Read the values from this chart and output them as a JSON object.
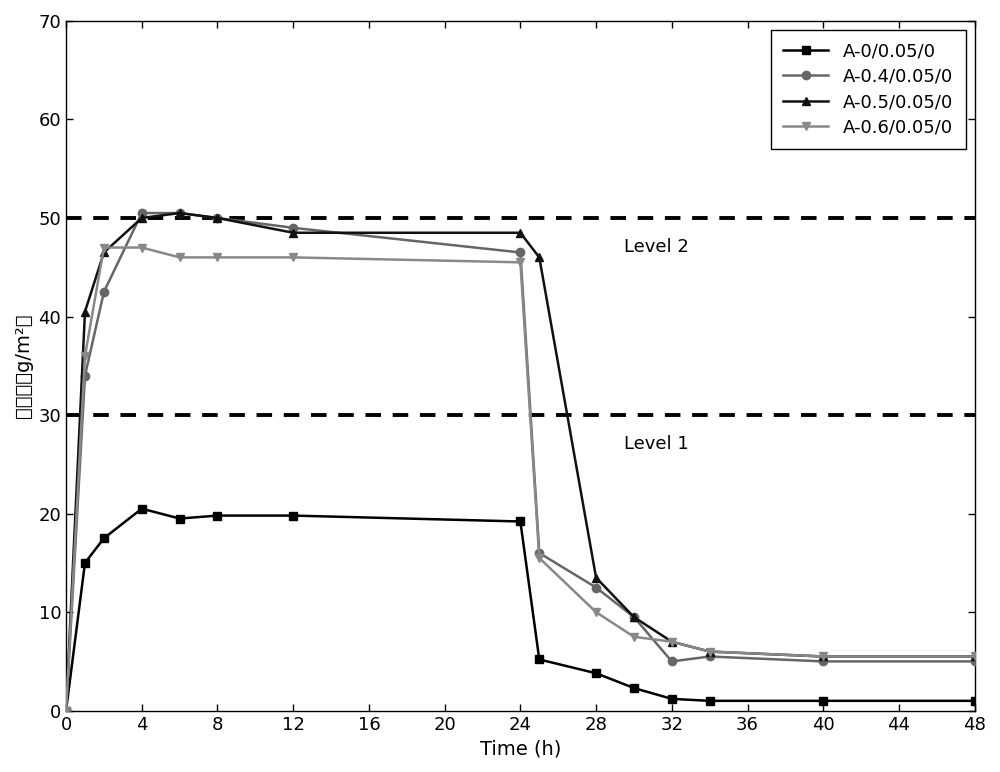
{
  "series": [
    {
      "label": "A-0/0.05/0",
      "color": "#000000",
      "linewidth": 1.8,
      "marker": "s",
      "markersize": 6,
      "x": [
        0,
        1,
        2,
        4,
        6,
        8,
        12,
        24,
        25,
        28,
        30,
        32,
        34,
        40,
        48
      ],
      "y": [
        0,
        15.0,
        17.5,
        20.5,
        19.5,
        19.8,
        19.8,
        19.2,
        5.2,
        3.8,
        2.3,
        1.2,
        1.0,
        1.0,
        1.0
      ]
    },
    {
      "label": "A-0.4/0.05/0",
      "color": "#666666",
      "linewidth": 1.8,
      "marker": "o",
      "markersize": 6,
      "x": [
        0,
        1,
        2,
        4,
        6,
        8,
        12,
        24,
        25,
        28,
        30,
        32,
        34,
        40,
        48
      ],
      "y": [
        0,
        34.0,
        42.5,
        50.5,
        50.5,
        50.0,
        49.0,
        46.5,
        16.0,
        12.5,
        9.5,
        5.0,
        5.5,
        5.0,
        5.0
      ]
    },
    {
      "label": "A-0.5/0.05/0",
      "color": "#111111",
      "linewidth": 1.8,
      "marker": "^",
      "markersize": 6,
      "x": [
        0,
        1,
        2,
        4,
        6,
        8,
        12,
        24,
        25,
        28,
        30,
        32,
        34,
        40,
        48
      ],
      "y": [
        0,
        40.5,
        46.5,
        50.0,
        50.5,
        50.0,
        48.5,
        48.5,
        46.0,
        13.5,
        9.5,
        7.0,
        6.0,
        5.5,
        5.5
      ]
    },
    {
      "label": "A-0.6/0.05/0",
      "color": "#888888",
      "linewidth": 1.8,
      "marker": "v",
      "markersize": 6,
      "x": [
        0,
        1,
        2,
        4,
        6,
        8,
        12,
        24,
        25,
        28,
        30,
        32,
        34,
        40,
        48
      ],
      "y": [
        0,
        36.0,
        47.0,
        47.0,
        46.0,
        46.0,
        46.0,
        45.5,
        15.5,
        10.0,
        7.5,
        7.0,
        6.0,
        5.5,
        5.5
      ]
    }
  ],
  "hlines": [
    {
      "y": 50,
      "label": "Level 2",
      "x_label": 29.5
    },
    {
      "y": 30,
      "label": "Level 1",
      "x_label": 29.5
    }
  ],
  "xlim": [
    0,
    48
  ],
  "ylim": [
    0,
    70
  ],
  "xticks": [
    0,
    4,
    8,
    12,
    16,
    20,
    24,
    28,
    32,
    36,
    40,
    44,
    48
  ],
  "yticks": [
    0,
    10,
    20,
    30,
    40,
    50,
    60,
    70
  ],
  "xlabel": "Time (h)",
  "ylabel": "吸湿值（g/m²）",
  "legend_loc": "upper right",
  "label_fontsize": 14,
  "tick_fontsize": 13,
  "legend_fontsize": 13,
  "hline_label_fontsize": 13,
  "background_color": "#ffffff",
  "figure_facecolor": "#ffffff"
}
